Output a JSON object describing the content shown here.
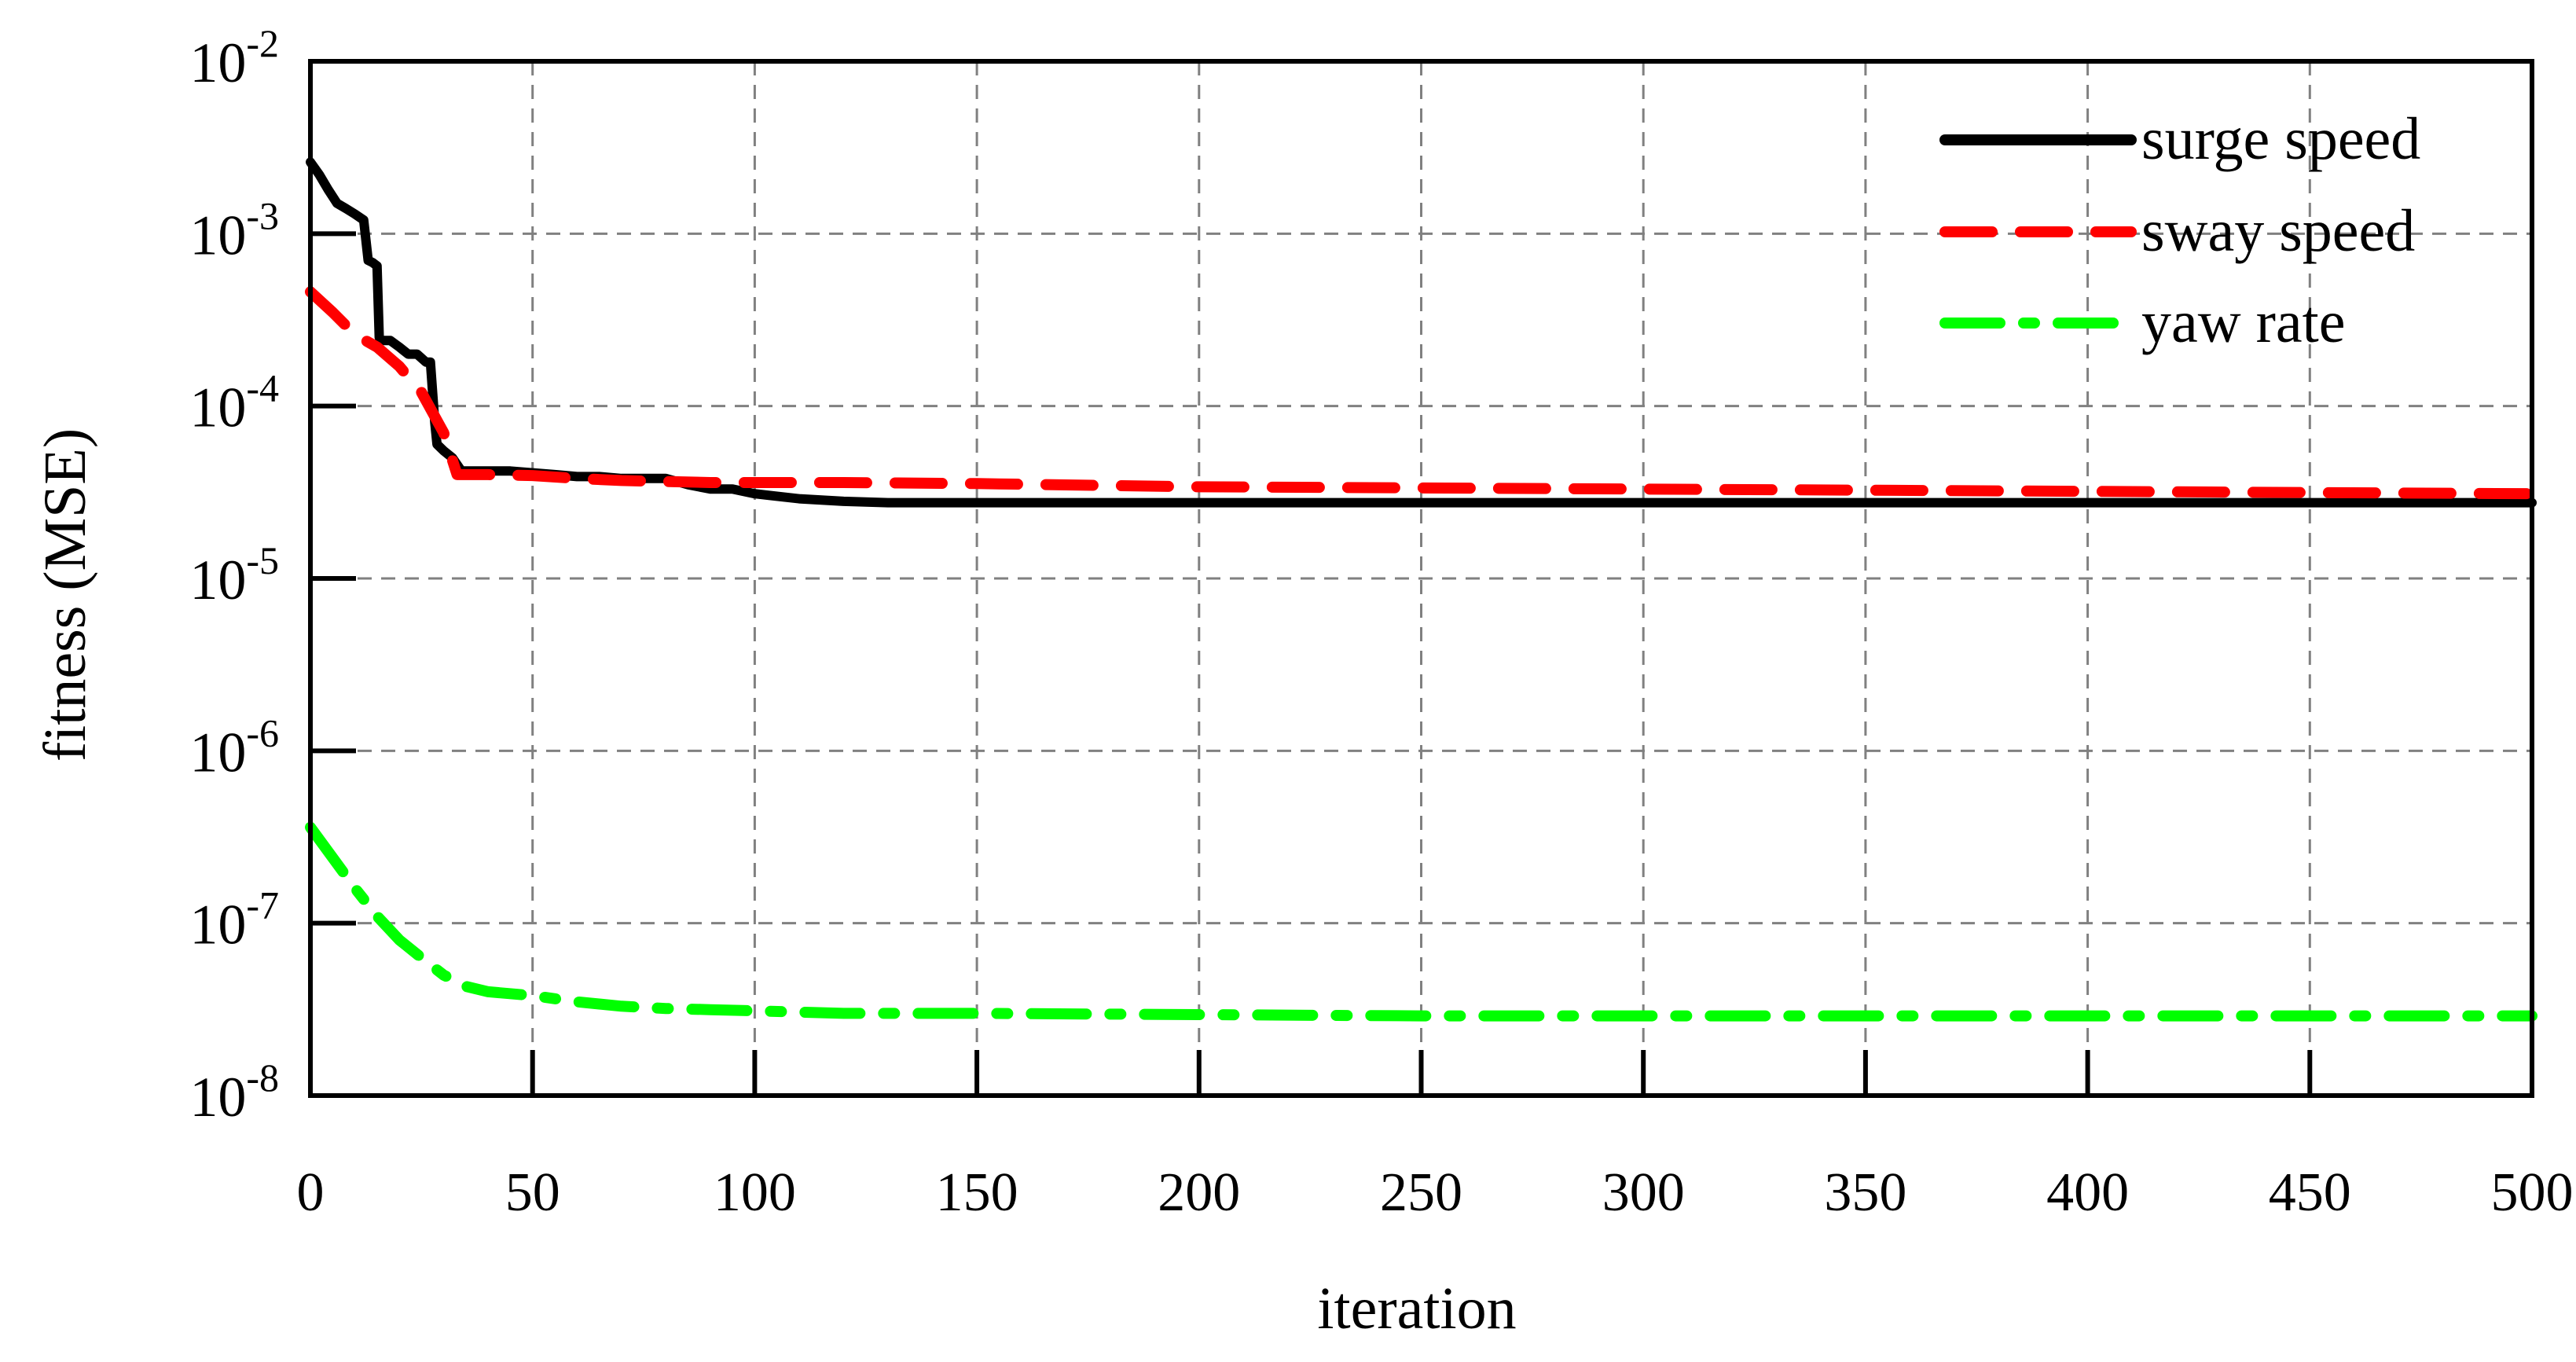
{
  "chart_data": {
    "type": "line",
    "xlabel": "iteration",
    "ylabel": "fitness (MSE)",
    "xlim": [
      0,
      500
    ],
    "ylim_log10": [
      -8,
      -2
    ],
    "y_scale": "log",
    "grid": true,
    "legend_position": "top-right",
    "x_ticks": [
      {
        "value": 0,
        "label": "0"
      },
      {
        "value": 50,
        "label": "50"
      },
      {
        "value": 100,
        "label": "100"
      },
      {
        "value": 150,
        "label": "150"
      },
      {
        "value": 200,
        "label": "200"
      },
      {
        "value": 250,
        "label": "250"
      },
      {
        "value": 300,
        "label": "300"
      },
      {
        "value": 350,
        "label": "350"
      },
      {
        "value": 400,
        "label": "400"
      },
      {
        "value": 450,
        "label": "450"
      },
      {
        "value": 500,
        "label": "500"
      }
    ],
    "y_ticks": [
      {
        "exp": -2,
        "base": "10",
        "sup": "-2"
      },
      {
        "exp": -3,
        "base": "10",
        "sup": "-3"
      },
      {
        "exp": -4,
        "base": "10",
        "sup": "-4"
      },
      {
        "exp": -5,
        "base": "10",
        "sup": "-5"
      },
      {
        "exp": -6,
        "base": "10",
        "sup": "-6"
      },
      {
        "exp": -7,
        "base": "10",
        "sup": "-7"
      },
      {
        "exp": -8,
        "base": "10",
        "sup": "-8"
      }
    ],
    "series": [
      {
        "name": "surge speed",
        "color": "#000000",
        "style": "solid",
        "x": [
          0,
          2,
          4,
          6,
          8,
          10,
          12,
          13,
          14,
          15,
          15.5,
          16,
          18,
          20,
          22,
          24,
          26,
          27,
          28,
          28.5,
          30,
          32,
          34,
          40,
          45,
          50,
          55,
          60,
          65,
          70,
          75,
          80,
          85,
          90,
          95,
          100,
          105,
          110,
          115,
          120,
          130,
          150,
          200,
          250,
          300,
          350,
          400,
          450,
          500
        ],
        "values": [
          0.0026,
          0.0022,
          0.0018,
          0.0015,
          0.0014,
          0.0013,
          0.0012,
          0.0007,
          0.00068,
          0.00065,
          0.00025,
          0.00024,
          0.00024,
          0.00022,
          0.0002,
          0.0002,
          0.00018,
          0.00018,
          8e-05,
          6e-05,
          5.5e-05,
          5e-05,
          4.2e-05,
          4.2e-05,
          4.2e-05,
          4.1e-05,
          4e-05,
          3.9e-05,
          3.9e-05,
          3.8e-05,
          3.8e-05,
          3.8e-05,
          3.5e-05,
          3.3e-05,
          3.3e-05,
          3.1e-05,
          3e-05,
          2.9e-05,
          2.85e-05,
          2.8e-05,
          2.75e-05,
          2.75e-05,
          2.75e-05,
          2.75e-05,
          2.75e-05,
          2.75e-05,
          2.75e-05,
          2.75e-05,
          2.75e-05
        ]
      },
      {
        "name": "sway speed",
        "color": "#ff0000",
        "style": "dashed",
        "x": [
          0,
          5,
          10,
          15,
          20,
          25,
          30,
          33,
          40,
          50,
          60,
          70,
          80,
          90,
          100,
          120,
          150,
          200,
          250,
          300,
          350,
          400,
          450,
          500
        ],
        "values": [
          0.00046,
          0.00035,
          0.00026,
          0.00022,
          0.00017,
          0.00012,
          7e-05,
          4e-05,
          4e-05,
          3.95e-05,
          3.8e-05,
          3.7e-05,
          3.65e-05,
          3.6e-05,
          3.6e-05,
          3.6e-05,
          3.55e-05,
          3.4e-05,
          3.35e-05,
          3.3e-05,
          3.25e-05,
          3.2e-05,
          3.15e-05,
          3.1e-05
        ]
      },
      {
        "name": "yaw rate",
        "color": "#00ff00",
        "style": "dashdot",
        "x": [
          0,
          5,
          10,
          15,
          20,
          25,
          30,
          35,
          40,
          50,
          60,
          70,
          80,
          90,
          100,
          110,
          120,
          150,
          200,
          250,
          300,
          350,
          400,
          450,
          500
        ],
        "values": [
          3.6e-07,
          2.4e-07,
          1.6e-07,
          1.1e-07,
          8e-08,
          6.3e-08,
          5e-08,
          4.3e-08,
          4e-08,
          3.8e-08,
          3.5e-08,
          3.3e-08,
          3.2e-08,
          3.15e-08,
          3.1e-08,
          3.05e-08,
          3e-08,
          3e-08,
          2.95e-08,
          2.9e-08,
          2.9e-08,
          2.9e-08,
          2.9e-08,
          2.9e-08,
          2.9e-08
        ]
      }
    ]
  }
}
